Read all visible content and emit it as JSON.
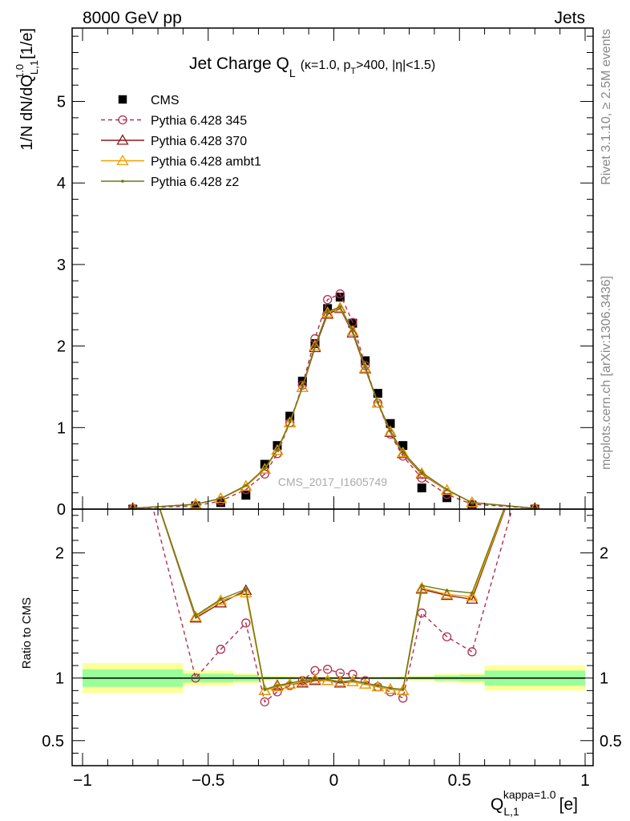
{
  "header": {
    "left": "8000 GeV pp",
    "right": "Jets"
  },
  "side_labels": {
    "rivet": "Rivet 3.1.10, ≥ 2.5M events",
    "mcplots": "mcplots.cern.ch [arXiv:1306.3436]"
  },
  "main_plot": {
    "title_main": "Jet Charge Q",
    "title_sub": "L",
    "title_paren_open": "(κ=1.0, p",
    "title_pt_sub": "T",
    "title_paren_rest": ">400, |η|<1.5)",
    "watermark": "CMS_2017_I1605749",
    "ylabel_main": "1/N dN/dQ",
    "ylabel_sup": "1.0",
    "ylabel_sub": "L,1",
    "ylabel_unit": "[1/e]"
  },
  "ratio_plot": {
    "ylabel": "Ratio to CMS"
  },
  "xlabel": {
    "main": "Q",
    "sup": "kappa=1.0",
    "sub": "L,1",
    "unit": "[e]"
  },
  "legend": {
    "entries": [
      {
        "label": "CMS",
        "series": "cms"
      },
      {
        "label": "Pythia 6.428 345",
        "series": "p345"
      },
      {
        "label": "Pythia 6.428 370",
        "series": "p370"
      },
      {
        "label": "Pythia 6.428 ambt1",
        "series": "ambt1"
      },
      {
        "label": "Pythia 6.428 z2",
        "series": "z2"
      }
    ]
  },
  "colors": {
    "cms": "#000000",
    "p345": "#b03050",
    "p370": "#8b1a1a",
    "ambt1": "#f0a000",
    "z2": "#6b7a10",
    "band_outer": "#ffff99",
    "band_inner": "#99ff99"
  },
  "chart_data": {
    "type": "scatter",
    "x_range": [
      -1.0,
      1.0
    ],
    "main": {
      "ylim": [
        0,
        5.9
      ],
      "yticks": [
        0,
        1,
        2,
        3,
        4,
        5
      ],
      "xticks": [
        -1,
        -0.5,
        0,
        0.5,
        1
      ],
      "series": [
        {
          "id": "cms",
          "name": "CMS",
          "x": [
            -0.8,
            -0.55,
            -0.45,
            -0.35,
            -0.275,
            -0.225,
            -0.175,
            -0.125,
            -0.075,
            -0.025,
            0.025,
            0.075,
            0.125,
            0.175,
            0.225,
            0.275,
            0.35,
            0.45,
            0.55,
            0.8
          ],
          "y": [
            0.0,
            0.04,
            0.08,
            0.17,
            0.55,
            0.78,
            1.14,
            1.57,
            2.03,
            2.46,
            2.6,
            2.28,
            1.82,
            1.42,
            1.05,
            0.78,
            0.26,
            0.14,
            0.05,
            0.0
          ]
        },
        {
          "id": "p345",
          "name": "Pythia 6.428 345",
          "x": [
            -0.8,
            -0.55,
            -0.45,
            -0.35,
            -0.275,
            -0.225,
            -0.175,
            -0.125,
            -0.075,
            -0.025,
            0.025,
            0.075,
            0.125,
            0.175,
            0.225,
            0.275,
            0.35,
            0.45,
            0.55,
            0.8
          ],
          "y": [
            0.01,
            0.04,
            0.1,
            0.24,
            0.43,
            0.68,
            1.06,
            1.52,
            2.09,
            2.57,
            2.64,
            2.29,
            1.76,
            1.3,
            0.92,
            0.65,
            0.38,
            0.18,
            0.06,
            0.01
          ]
        },
        {
          "id": "p370",
          "name": "Pythia 6.428 370",
          "x": [
            -0.8,
            -0.55,
            -0.45,
            -0.35,
            -0.275,
            -0.225,
            -0.175,
            -0.125,
            -0.075,
            -0.025,
            0.025,
            0.075,
            0.125,
            0.175,
            0.225,
            0.275,
            0.35,
            0.45,
            0.55,
            0.8
          ],
          "y": [
            0.01,
            0.06,
            0.13,
            0.28,
            0.49,
            0.72,
            1.06,
            1.49,
            1.98,
            2.39,
            2.46,
            2.16,
            1.72,
            1.3,
            0.94,
            0.68,
            0.43,
            0.23,
            0.08,
            0.01
          ]
        },
        {
          "id": "ambt1",
          "name": "Pythia 6.428 ambt1",
          "x": [
            -0.8,
            -0.55,
            -0.45,
            -0.35,
            -0.275,
            -0.225,
            -0.175,
            -0.125,
            -0.075,
            -0.025,
            0.025,
            0.075,
            0.125,
            0.175,
            0.225,
            0.275,
            0.35,
            0.45,
            0.55,
            0.8
          ],
          "y": [
            0.01,
            0.06,
            0.13,
            0.28,
            0.49,
            0.72,
            1.06,
            1.49,
            2.0,
            2.41,
            2.47,
            2.18,
            1.73,
            1.3,
            0.95,
            0.69,
            0.44,
            0.23,
            0.08,
            0.01
          ]
        },
        {
          "id": "z2",
          "name": "Pythia 6.428 z2",
          "x": [
            -0.8,
            -0.55,
            -0.45,
            -0.35,
            -0.275,
            -0.225,
            -0.175,
            -0.125,
            -0.075,
            -0.025,
            0.025,
            0.075,
            0.125,
            0.175,
            0.225,
            0.275,
            0.35,
            0.45,
            0.55,
            0.8
          ],
          "y": [
            0.01,
            0.06,
            0.13,
            0.29,
            0.5,
            0.73,
            1.07,
            1.5,
            2.0,
            2.42,
            2.48,
            2.19,
            1.74,
            1.31,
            0.96,
            0.7,
            0.45,
            0.24,
            0.08,
            0.01
          ]
        }
      ]
    },
    "ratio": {
      "ylim": [
        0.3,
        2.35
      ],
      "yticks": [
        0.5,
        1,
        2
      ],
      "ylabel": "Ratio to CMS",
      "bands": {
        "edges": [
          -1.0,
          -0.6,
          -0.4,
          -0.3,
          -0.25,
          -0.2,
          -0.15,
          -0.1,
          -0.05,
          0.0,
          0.05,
          0.1,
          0.15,
          0.2,
          0.25,
          0.3,
          0.4,
          0.5,
          0.6,
          1.0
        ],
        "outer": [
          0.12,
          0.06,
          0.04,
          0.02,
          0.018,
          0.016,
          0.014,
          0.012,
          0.012,
          0.012,
          0.012,
          0.012,
          0.012,
          0.014,
          0.016,
          0.02,
          0.035,
          0.04,
          0.1
        ],
        "inner": [
          0.07,
          0.035,
          0.025,
          0.012,
          0.01,
          0.009,
          0.008,
          0.007,
          0.007,
          0.007,
          0.007,
          0.007,
          0.007,
          0.008,
          0.009,
          0.012,
          0.02,
          0.025,
          0.06
        ]
      },
      "series": [
        {
          "id": "p345",
          "name": "Pythia 6.428 345",
          "x": [
            -0.8,
            -0.55,
            -0.45,
            -0.35,
            -0.275,
            -0.225,
            -0.175,
            -0.125,
            -0.075,
            -0.025,
            0.025,
            0.075,
            0.125,
            0.175,
            0.225,
            0.275,
            0.35,
            0.45,
            0.55,
            0.8
          ],
          "y": [
            3.0,
            1.0,
            1.23,
            1.44,
            0.81,
            0.89,
            0.94,
            0.98,
            1.06,
            1.07,
            1.04,
            1.03,
            0.98,
            0.93,
            0.89,
            0.84,
            1.52,
            1.33,
            1.21,
            3.0
          ]
        },
        {
          "id": "p370",
          "name": "Pythia 6.428 370",
          "x": [
            -0.8,
            -0.55,
            -0.45,
            -0.35,
            -0.275,
            -0.225,
            -0.175,
            -0.125,
            -0.075,
            -0.025,
            0.025,
            0.075,
            0.125,
            0.175,
            0.225,
            0.275,
            0.35,
            0.45,
            0.55,
            0.8
          ],
          "y": [
            3.0,
            1.48,
            1.6,
            1.7,
            0.9,
            0.94,
            0.95,
            0.96,
            0.98,
            0.98,
            0.96,
            0.97,
            0.95,
            0.93,
            0.91,
            0.9,
            1.71,
            1.66,
            1.63,
            3.0
          ]
        },
        {
          "id": "ambt1",
          "name": "Pythia 6.428 ambt1",
          "x": [
            -0.8,
            -0.55,
            -0.45,
            -0.35,
            -0.275,
            -0.225,
            -0.175,
            -0.125,
            -0.075,
            -0.025,
            0.025,
            0.075,
            0.125,
            0.175,
            0.225,
            0.275,
            0.35,
            0.45,
            0.55,
            0.8
          ],
          "y": [
            3.0,
            1.49,
            1.62,
            1.68,
            0.9,
            0.93,
            0.95,
            0.97,
            0.99,
            0.98,
            0.97,
            0.97,
            0.95,
            0.93,
            0.91,
            0.9,
            1.72,
            1.67,
            1.65,
            3.0
          ]
        },
        {
          "id": "z2",
          "name": "Pythia 6.428 z2",
          "x": [
            -0.8,
            -0.55,
            -0.45,
            -0.35,
            -0.275,
            -0.225,
            -0.175,
            -0.125,
            -0.075,
            -0.025,
            0.025,
            0.075,
            0.125,
            0.175,
            0.225,
            0.275,
            0.35,
            0.45,
            0.55,
            0.8
          ],
          "y": [
            3.0,
            1.5,
            1.63,
            1.71,
            0.91,
            0.94,
            0.96,
            0.98,
            0.99,
            0.99,
            0.97,
            0.98,
            0.96,
            0.94,
            0.92,
            0.91,
            1.74,
            1.7,
            1.68,
            3.0
          ]
        }
      ]
    }
  }
}
